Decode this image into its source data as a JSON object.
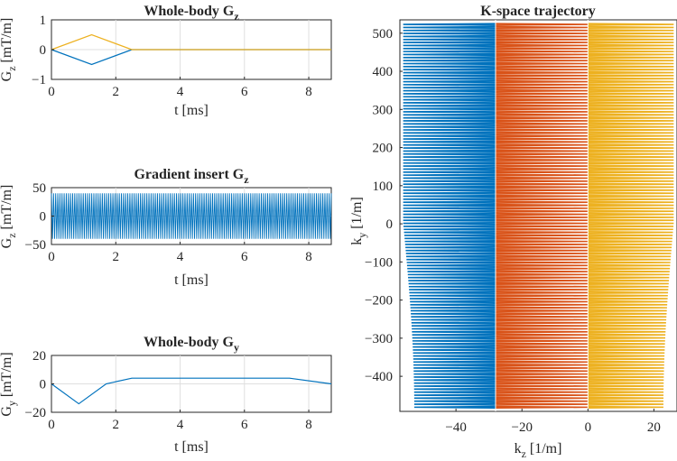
{
  "colors": {
    "blue": "#0072bd",
    "orange": "#d95319",
    "yellow": "#edb120"
  },
  "chart_data": [
    {
      "id": "whole-body-gz",
      "type": "line",
      "title": "Whole-body G",
      "title_sub": "z",
      "xlabel": "t [ms]",
      "ylabel": "G",
      "ylabel_sub": "z",
      "ylabel_unit": " [mT/m]",
      "xlim": [
        0,
        8.7
      ],
      "ylim": [
        -1,
        1
      ],
      "xticks": [
        0,
        2,
        4,
        6,
        8
      ],
      "yticks": [
        -1,
        0,
        1
      ],
      "series": [
        {
          "name": "blue",
          "color": "#0072bd",
          "x": [
            0,
            1.25,
            2.5,
            8.7
          ],
          "y": [
            0,
            -0.5,
            0,
            0
          ]
        },
        {
          "name": "yellow",
          "color": "#edb120",
          "x": [
            0,
            1.25,
            2.5,
            8.7
          ],
          "y": [
            0,
            0.5,
            0,
            0
          ]
        }
      ]
    },
    {
      "id": "gradient-insert-gz",
      "type": "line",
      "title": "Gradient insert G",
      "title_sub": "z",
      "xlabel": "t [ms]",
      "ylabel": "G",
      "ylabel_sub": "z",
      "ylabel_unit": " [mT/m]",
      "xlim": [
        0,
        8.7
      ],
      "ylim": [
        -50,
        50
      ],
      "xticks": [
        0,
        2,
        4,
        6,
        8
      ],
      "yticks": [
        -50,
        0,
        50
      ],
      "oscillation": {
        "color": "#0072bd",
        "amplitude": 40,
        "t_start": 0,
        "t_end": 8.7,
        "cycles": 132
      }
    },
    {
      "id": "whole-body-gy",
      "type": "line",
      "title": "Whole-body G",
      "title_sub": "y",
      "xlabel": "t [ms]",
      "ylabel": "G",
      "ylabel_sub": "y",
      "ylabel_unit": " [mT/m]",
      "xlim": [
        0,
        8.7
      ],
      "ylim": [
        -20,
        20
      ],
      "xticks": [
        0,
        2,
        4,
        6,
        8
      ],
      "yticks": [
        -20,
        0,
        20
      ],
      "series": [
        {
          "name": "blue",
          "color": "#0072bd",
          "x": [
            0,
            0.85,
            1.7,
            2.5,
            7.4,
            8.7
          ],
          "y": [
            0,
            -14,
            0,
            4,
            4,
            0
          ]
        }
      ]
    },
    {
      "id": "k-space-trajectory",
      "type": "line",
      "title": "K-space trajectory",
      "xlabel": "k",
      "xlabel_sub": "z",
      "xlabel_unit": " [1/m]",
      "ylabel": "k",
      "ylabel_sub": "y",
      "ylabel_unit": " [1/m]",
      "xlim": [
        -57,
        27
      ],
      "ylim": [
        -492,
        535
      ],
      "xticks": [
        -40,
        -20,
        0,
        20
      ],
      "yticks": [
        -400,
        -300,
        -200,
        -100,
        0,
        100,
        200,
        300,
        400,
        500
      ],
      "segments": [
        {
          "name": "blue",
          "color": "#0072bd",
          "kz_from": -28,
          "kz_to": -56
        },
        {
          "name": "orange",
          "color": "#d95319",
          "kz_from": -28,
          "kz_to": 0
        },
        {
          "name": "yellow",
          "color": "#edb120",
          "kz_from": 0,
          "kz_to": 26
        }
      ],
      "ky_top": 525,
      "ky_bottom": -487,
      "line_count": 128
    }
  ]
}
